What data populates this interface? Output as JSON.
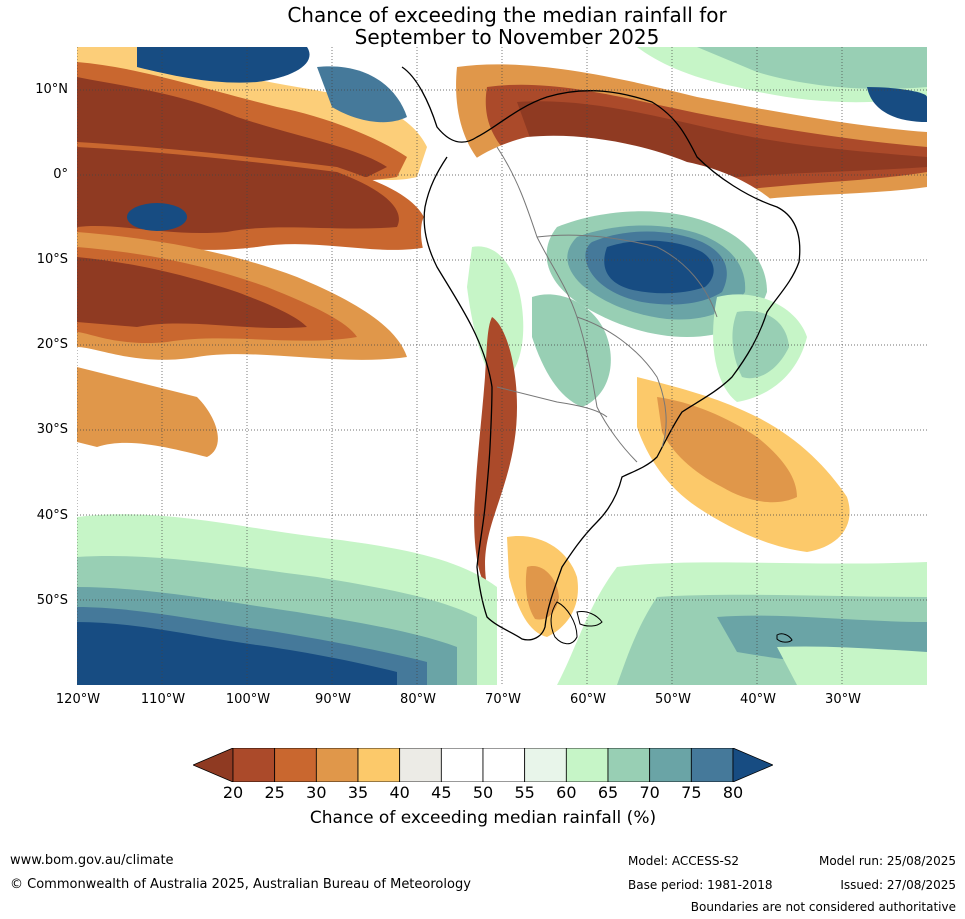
{
  "title": {
    "line1": "Chance of exceeding the median rainfall for",
    "line2": "September to November 2025"
  },
  "lat_labels": [
    "10°N",
    "0°",
    "10°S",
    "20°S",
    "30°S",
    "40°S",
    "50°S"
  ],
  "lon_labels": [
    "120°W",
    "110°W",
    "100°W",
    "90°W",
    "80°W",
    "70°W",
    "60°W",
    "50°W",
    "40°W",
    "30°W"
  ],
  "colorbar": {
    "ticks": [
      "20",
      "25",
      "30",
      "35",
      "40",
      "45",
      "50",
      "55",
      "60",
      "65",
      "70",
      "75",
      "80"
    ],
    "colors": [
      "#8f3a22",
      "#ab4a2a",
      "#c9672f",
      "#e0974a",
      "#fcc96a",
      "#ecebe6",
      "#ffffff",
      "#ffffff",
      "#e8f5ea",
      "#c6f5c7",
      "#98cfb4",
      "#6aa4a6",
      "#45799a",
      "#174c82"
    ],
    "label": "Chance of exceeding median rainfall (%)"
  },
  "footer": {
    "website": "www.bom.gov.au/climate",
    "copyright": "© Commonwealth of Australia 2025, Australian Bureau of Meteorology",
    "model": "Model: ACCESS-S2",
    "base_period": "Base period: 1981-2018",
    "model_run": "Model run: 25/08/2025",
    "issued": "Issued: 27/08/2025",
    "disclaimer": "Boundaries are not considered authoritative"
  }
}
